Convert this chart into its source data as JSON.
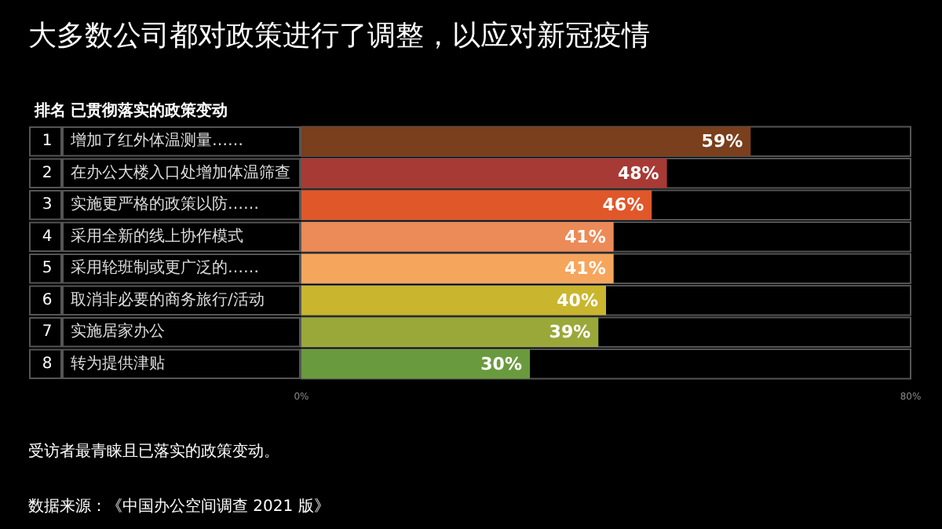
{
  "chart_data": {
    "type": "bar",
    "orientation": "horizontal",
    "title": "大多数公司都对政策进行了调整，以应对新冠疫情",
    "categories": [
      "增加了红外体温测量……",
      "在办公大楼入口处增加体温筛查",
      "实施更严格的政策以防……",
      "采用全新的线上协作模式",
      "采用轮班制或更广泛的……",
      "取消非必要的商务旅行/活动",
      "实施居家办公",
      "转为提供津贴"
    ],
    "values": [
      59,
      48,
      46,
      41,
      41,
      40,
      39,
      30
    ],
    "value_labels": [
      "59%",
      "48%",
      "46%",
      "41%",
      "41%",
      "40%",
      "39%",
      "30%"
    ],
    "colors": [
      "#7a3f1c",
      "#a83a35",
      "#e0572a",
      "#ec8a58",
      "#f6a55c",
      "#c9b62e",
      "#9aa83a",
      "#6a9a3e"
    ],
    "xlim": [
      0,
      80
    ],
    "xticks": [
      {
        "value": 0,
        "label": "0%"
      },
      {
        "value": 80,
        "label": "80%"
      }
    ],
    "grid": false,
    "annotations": [
      "排名",
      "已贯彻落实的政策变动",
      "1",
      "2",
      "3",
      "4",
      "5",
      "6",
      "7",
      "8",
      "受访者最青睐且已落实的政策变动。",
      "数据来源：《中国办公空间调查 2021 版》"
    ]
  }
}
